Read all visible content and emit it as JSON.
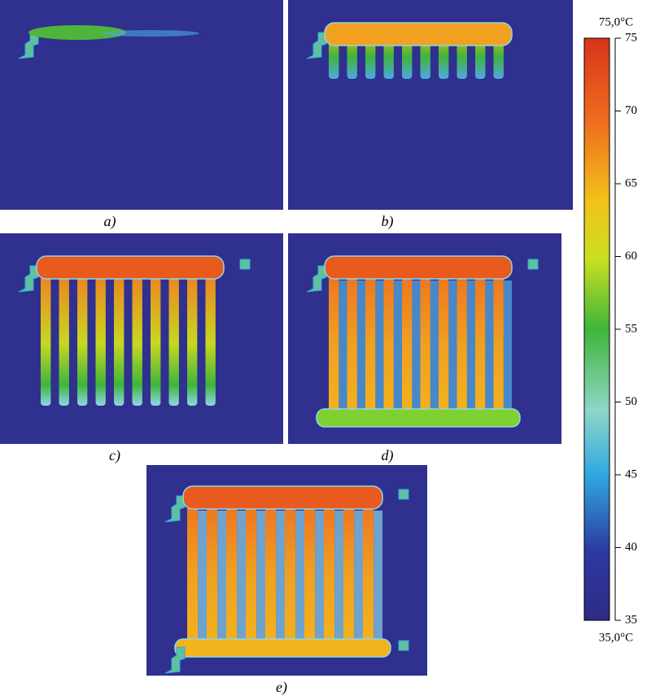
{
  "panels": [
    {
      "label": "a)"
    },
    {
      "label": "b)"
    },
    {
      "label": "c)"
    },
    {
      "label": "d)"
    },
    {
      "label": "e)"
    }
  ],
  "colorbar": {
    "max_label": "75,0°C",
    "min_label": "35,0°C",
    "range": [
      35,
      75
    ],
    "ticks": [
      35,
      40,
      45,
      50,
      55,
      60,
      65,
      70,
      75
    ]
  }
}
